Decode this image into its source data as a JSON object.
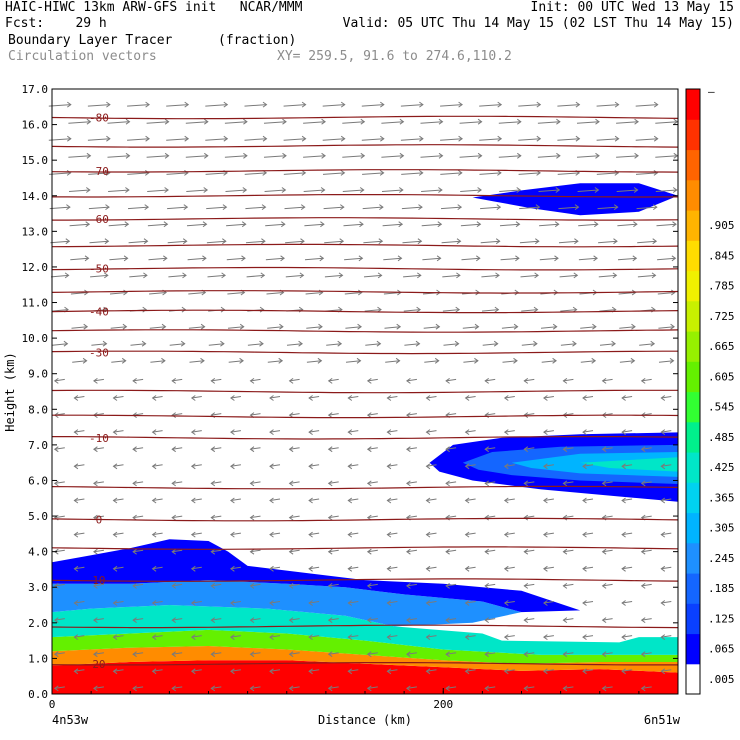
{
  "header": {
    "line1_left": "HAIC-HIWC 13km ARW-GFS init   NCAR/MMM",
    "line1_right": "Init: 00 UTC Wed 13 May 15",
    "fcst_label": "Fcst:    29 h",
    "valid": "Valid: 05 UTC Thu 14 May 15 (02 LST Thu 14 May 15)",
    "field": "Boundary Layer Tracer",
    "units": "(fraction)",
    "vectors": "Circulation vectors",
    "xy": "XY= 259.5, 91.6 to 274.6,110.2"
  },
  "colors": {
    "contour": "#8b1a1a",
    "vector": "#7a7a7a",
    "shade": [
      "#ffffff",
      "#0000ff",
      "#0a40ff",
      "#1466ff",
      "#1e90ff",
      "#00b4ff",
      "#00d2f0",
      "#00e6c8",
      "#00f08c",
      "#32ff32",
      "#64f000",
      "#96f000",
      "#c8f000",
      "#f0f000",
      "#ffdc00",
      "#ffb400",
      "#ff8c00",
      "#ff6400",
      "#ff3200",
      "#ff0000"
    ]
  },
  "chart_data": {
    "type": "heatmap",
    "title": "Boundary Layer Tracer",
    "units": "(fraction)",
    "xlabel": "Distance (km)",
    "ylabel": "Height (km)",
    "xlim": [
      0,
      320
    ],
    "ylim": [
      0,
      17
    ],
    "x_ticks": [
      0,
      200
    ],
    "x_tick_labels": [
      "0",
      "200"
    ],
    "x_end_labels": [
      "4n53w",
      "6n51w"
    ],
    "y_ticks": [
      0.0,
      1.0,
      2.0,
      3.0,
      4.0,
      5.0,
      6.0,
      7.0,
      8.0,
      9.0,
      10.0,
      11.0,
      12.0,
      13.0,
      14.0,
      15.0,
      16.0,
      17.0
    ],
    "y_tick_labels": [
      "0.0",
      "1.0",
      "2.0",
      "3.0",
      "4.0",
      "5.0",
      "6.0",
      "7.0",
      "8.0",
      "9.0",
      "10.0",
      "11.0",
      "12.0",
      "13.0",
      "14.0",
      "15.0",
      "16.0",
      "17.0"
    ],
    "colorbar_labels": [
      ".005",
      ".065",
      ".125",
      ".185",
      ".245",
      ".305",
      ".365",
      ".425",
      ".485",
      ".545",
      ".605",
      ".665",
      ".725",
      ".785",
      ".845",
      ".905"
    ],
    "colorbar_top": "—",
    "tracer_regions": [
      {
        "level": 19,
        "polygon": [
          [
            0,
            0
          ],
          [
            320,
            0
          ],
          [
            320,
            0.6
          ],
          [
            280,
            0.7
          ],
          [
            240,
            0.65
          ],
          [
            200,
            0.75
          ],
          [
            160,
            0.85
          ],
          [
            120,
            0.95
          ],
          [
            80,
            0.95
          ],
          [
            40,
            0.9
          ],
          [
            0,
            0.8
          ]
        ]
      },
      {
        "level": 16,
        "polygon": [
          [
            0,
            0.8
          ],
          [
            40,
            0.9
          ],
          [
            80,
            0.95
          ],
          [
            120,
            0.95
          ],
          [
            160,
            0.85
          ],
          [
            200,
            0.75
          ],
          [
            240,
            0.65
          ],
          [
            280,
            0.7
          ],
          [
            320,
            0.6
          ],
          [
            320,
            0.9
          ],
          [
            280,
            0.9
          ],
          [
            240,
            0.85
          ],
          [
            200,
            0.95
          ],
          [
            160,
            1.1
          ],
          [
            120,
            1.25
          ],
          [
            80,
            1.35
          ],
          [
            40,
            1.3
          ],
          [
            0,
            1.2
          ]
        ]
      },
      {
        "level": 10,
        "polygon": [
          [
            0,
            1.2
          ],
          [
            40,
            1.3
          ],
          [
            80,
            1.35
          ],
          [
            120,
            1.25
          ],
          [
            160,
            1.1
          ],
          [
            200,
            0.95
          ],
          [
            240,
            0.85
          ],
          [
            280,
            0.9
          ],
          [
            320,
            0.9
          ],
          [
            320,
            1.1
          ],
          [
            250,
            1.1
          ],
          [
            200,
            1.25
          ],
          [
            160,
            1.5
          ],
          [
            120,
            1.7
          ],
          [
            80,
            1.8
          ],
          [
            40,
            1.7
          ],
          [
            0,
            1.6
          ]
        ]
      },
      {
        "level": 7,
        "polygon": [
          [
            0,
            1.6
          ],
          [
            40,
            1.7
          ],
          [
            80,
            1.8
          ],
          [
            120,
            1.7
          ],
          [
            160,
            1.5
          ],
          [
            200,
            1.25
          ],
          [
            250,
            1.1
          ],
          [
            320,
            1.1
          ],
          [
            320,
            1.6
          ],
          [
            300,
            1.6
          ],
          [
            290,
            1.45
          ],
          [
            230,
            1.5
          ],
          [
            220,
            1.7
          ],
          [
            175,
            1.9
          ],
          [
            150,
            2.2
          ],
          [
            110,
            2.4
          ],
          [
            60,
            2.5
          ],
          [
            20,
            2.4
          ],
          [
            0,
            2.3
          ]
        ]
      },
      {
        "level": 4,
        "polygon": [
          [
            0,
            2.3
          ],
          [
            20,
            2.4
          ],
          [
            60,
            2.5
          ],
          [
            110,
            2.4
          ],
          [
            150,
            2.2
          ],
          [
            175,
            1.9
          ],
          [
            215,
            2.0
          ],
          [
            240,
            2.3
          ],
          [
            220,
            2.6
          ],
          [
            180,
            2.8
          ],
          [
            150,
            3.0
          ],
          [
            120,
            3.1
          ],
          [
            80,
            3.2
          ],
          [
            40,
            3.1
          ],
          [
            0,
            3.1
          ]
        ]
      },
      {
        "level": 1,
        "polygon": [
          [
            0,
            3.1
          ],
          [
            40,
            3.1
          ],
          [
            80,
            3.2
          ],
          [
            120,
            3.1
          ],
          [
            150,
            3.0
          ],
          [
            180,
            2.8
          ],
          [
            220,
            2.6
          ],
          [
            240,
            2.3
          ],
          [
            270,
            2.35
          ],
          [
            240,
            2.9
          ],
          [
            200,
            3.1
          ],
          [
            160,
            3.2
          ],
          [
            130,
            3.4
          ],
          [
            100,
            3.6
          ],
          [
            90,
            4.0
          ],
          [
            80,
            4.3
          ],
          [
            60,
            4.35
          ],
          [
            40,
            4.1
          ],
          [
            20,
            3.9
          ],
          [
            0,
            3.7
          ]
        ]
      },
      {
        "level": 1,
        "polygon": [
          [
            193,
            6.5
          ],
          [
            205,
            7.0
          ],
          [
            230,
            7.2
          ],
          [
            270,
            7.3
          ],
          [
            320,
            7.35
          ],
          [
            320,
            5.4
          ],
          [
            290,
            5.55
          ],
          [
            250,
            5.75
          ],
          [
            215,
            6.0
          ],
          [
            198,
            6.25
          ]
        ]
      },
      {
        "level": 3,
        "polygon": [
          [
            210,
            6.5
          ],
          [
            225,
            6.8
          ],
          [
            260,
            6.95
          ],
          [
            320,
            7.0
          ],
          [
            320,
            5.9
          ],
          [
            270,
            6.0
          ],
          [
            235,
            6.15
          ],
          [
            218,
            6.3
          ]
        ]
      },
      {
        "level": 5,
        "polygon": [
          [
            235,
            6.5
          ],
          [
            270,
            6.75
          ],
          [
            320,
            6.8
          ],
          [
            320,
            6.1
          ],
          [
            270,
            6.2
          ],
          [
            245,
            6.35
          ]
        ]
      },
      {
        "level": 7,
        "polygon": [
          [
            270,
            6.5
          ],
          [
            320,
            6.65
          ],
          [
            320,
            6.25
          ],
          [
            285,
            6.35
          ]
        ]
      },
      {
        "level": 1,
        "polygon": [
          [
            215,
            13.95
          ],
          [
            240,
            14.15
          ],
          [
            270,
            14.35
          ],
          [
            300,
            14.35
          ],
          [
            320,
            14.0
          ],
          [
            300,
            13.55
          ],
          [
            270,
            13.45
          ],
          [
            245,
            13.65
          ],
          [
            225,
            13.85
          ]
        ]
      }
    ],
    "contour_lines": [
      {
        "label": "-80",
        "y": 16.2
      },
      {
        "label": "",
        "y": 15.4
      },
      {
        "label": "-70",
        "y": 14.7
      },
      {
        "label": "",
        "y": 14.0
      },
      {
        "label": "-60",
        "y": 13.35
      },
      {
        "label": "",
        "y": 12.6
      },
      {
        "label": "-50",
        "y": 11.95
      },
      {
        "label": "",
        "y": 11.3
      },
      {
        "label": "-40",
        "y": 10.75
      },
      {
        "label": "",
        "y": 10.2
      },
      {
        "label": "-30",
        "y": 9.6
      },
      {
        "label": "",
        "y": 8.5
      },
      {
        "label": "",
        "y": 7.8
      },
      {
        "label": "-10",
        "y": 7.2
      },
      {
        "label": "",
        "y": 5.8
      },
      {
        "label": "0",
        "y": 4.9
      },
      {
        "label": "",
        "y": 4.1
      },
      {
        "label": "10",
        "y": 3.2
      },
      {
        "label": "",
        "y": 1.9
      },
      {
        "label": "20",
        "y": 0.85
      }
    ]
  }
}
